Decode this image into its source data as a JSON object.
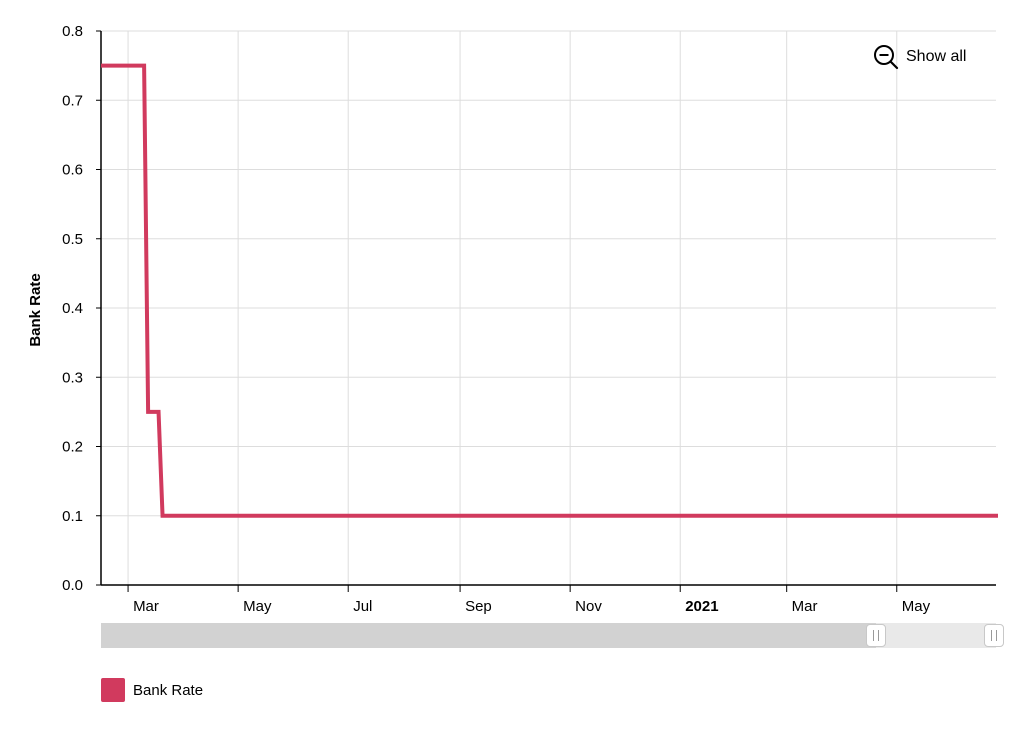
{
  "chart_data": {
    "type": "line",
    "step": true,
    "title": "",
    "xlabel": "",
    "ylabel": "Bank Rate",
    "ylim": [
      0,
      0.8
    ],
    "yticks": [
      "0.0",
      "0.1",
      "0.2",
      "0.3",
      "0.4",
      "0.5",
      "0.6",
      "0.7",
      "0.8"
    ],
    "xlim": [
      "2020-02-15",
      "2021-06-25"
    ],
    "xticks": [
      {
        "label": "Mar",
        "date": "2020-03-01",
        "bold": false
      },
      {
        "label": "May",
        "date": "2020-05-01",
        "bold": false
      },
      {
        "label": "Jul",
        "date": "2020-07-01",
        "bold": false
      },
      {
        "label": "Sep",
        "date": "2020-09-01",
        "bold": false
      },
      {
        "label": "Nov",
        "date": "2020-11-01",
        "bold": false
      },
      {
        "label": "2021",
        "date": "2021-01-01",
        "bold": true
      },
      {
        "label": "Mar",
        "date": "2021-03-01",
        "bold": false
      },
      {
        "label": "May",
        "date": "2021-05-01",
        "bold": false
      }
    ],
    "grid": true,
    "legend_position": "bottom-left",
    "series": [
      {
        "name": "Bank Rate",
        "color": "#d13a5e",
        "x": [
          "2020-02-15",
          "2020-03-11",
          "2020-03-19",
          "2021-06-25"
        ],
        "values": [
          0.75,
          0.25,
          0.1,
          0.1
        ]
      }
    ]
  },
  "controls": {
    "zoom_out_icon": "zoom-out-icon",
    "zoom_out_label": "Show all",
    "scrollbar_start": 0,
    "scrollbar_end": 0.866
  },
  "legend": {
    "items": [
      {
        "label": "Bank Rate",
        "color": "#d13a5e"
      }
    ]
  }
}
